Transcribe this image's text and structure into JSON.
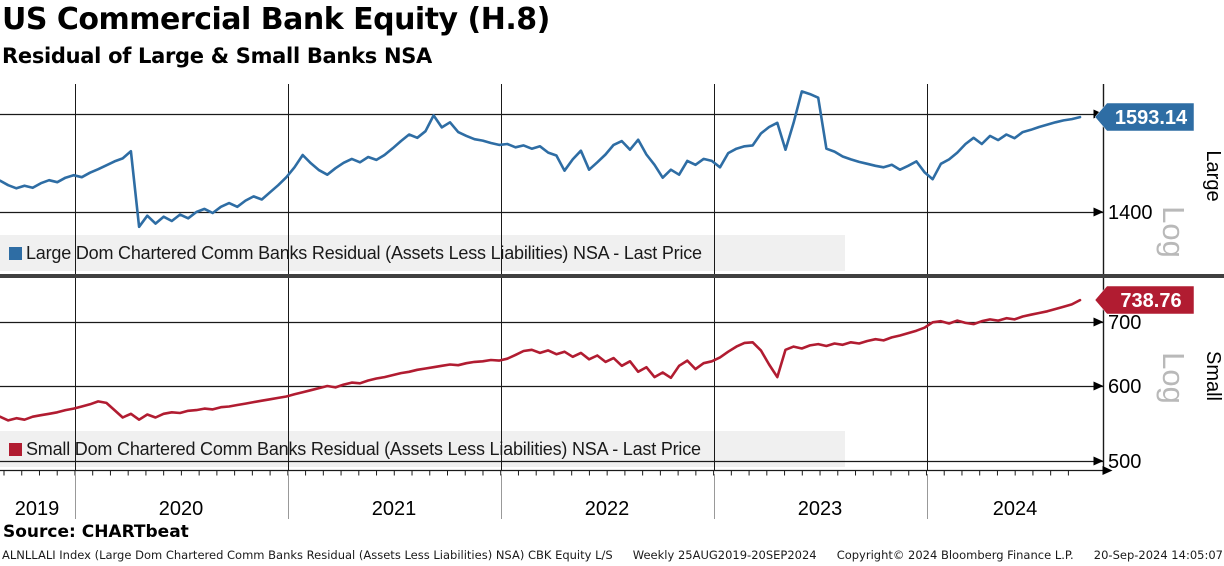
{
  "header": {
    "title": "US Commercial Bank Equity (H.8)",
    "subtitle": "Residual of Large & Small Banks NSA"
  },
  "footer": {
    "source": "Source: CHARTbeat",
    "disclaimer_left": "ALNLLALI Index (Large Dom Chartered Comm Banks Residual (Assets Less Liabilities) NSA) CBK Equity L/S",
    "disclaimer_period": "Weekly 25AUG2019-20SEP2024",
    "disclaimer_copyright": "Copyright© 2024 Bloomberg Finance L.P.",
    "disclaimer_datetime": "20-Sep-2024 14:05:07"
  },
  "colors": {
    "large_line": "#2e6da4",
    "small_line": "#b11c31",
    "gridline": "#1a1a1a",
    "legend_band": "#f0f0f0",
    "panel_divider": "#404040",
    "log_label": "#b9b9b9",
    "year_separator": "#999999"
  },
  "chart_data": {
    "type": "line",
    "title": "US Commercial Bank Equity (H.8)",
    "subtitle": "Residual of Large & Small Banks NSA",
    "frequency": "Weekly",
    "x_range": [
      "25AUG2019",
      "20SEP2024"
    ],
    "x_tick_labels": [
      "2019",
      "2020",
      "2021",
      "2022",
      "2023",
      "2024"
    ],
    "legend_position": "inside-band-left",
    "grid": true,
    "panels": [
      {
        "name": "Large Dom Chartered Comm Banks Residual (Assets Less Liabilities) NSA - Last Price",
        "side_label": "Large",
        "scale_label": "Log",
        "color": "#2e6da4",
        "last_price": 1593.14,
        "y_axis_ticks": [
          1400
        ],
        "y_gridline_values": [
          1400,
          1600
        ],
        "values": [
          1461,
          1452,
          1446,
          1451,
          1447,
          1456,
          1462,
          1458,
          1467,
          1472,
          1468,
          1477,
          1484,
          1492,
          1500,
          1506,
          1521,
          1372,
          1393,
          1378,
          1391,
          1383,
          1395,
          1388,
          1400,
          1406,
          1398,
          1410,
          1417,
          1410,
          1422,
          1430,
          1424,
          1438,
          1452,
          1468,
          1488,
          1513,
          1496,
          1482,
          1473,
          1486,
          1497,
          1505,
          1498,
          1509,
          1503,
          1513,
          1527,
          1542,
          1556,
          1549,
          1563,
          1597,
          1571,
          1582,
          1561,
          1553,
          1546,
          1543,
          1538,
          1534,
          1536,
          1529,
          1533,
          1526,
          1531,
          1518,
          1512,
          1481,
          1504,
          1522,
          1483,
          1498,
          1514,
          1534,
          1542,
          1524,
          1545,
          1514,
          1493,
          1467,
          1483,
          1473,
          1501,
          1493,
          1505,
          1501,
          1488,
          1517,
          1526,
          1531,
          1533,
          1558,
          1572,
          1581,
          1524,
          1581,
          1650,
          1644,
          1636,
          1526,
          1520,
          1510,
          1504,
          1499,
          1495,
          1491,
          1488,
          1493,
          1483,
          1491,
          1500,
          1478,
          1464,
          1495,
          1504,
          1518,
          1536,
          1549,
          1536,
          1553,
          1544,
          1556,
          1548,
          1561,
          1566,
          1572,
          1577,
          1582,
          1586,
          1589,
          1593.14
        ]
      },
      {
        "name": "Small Dom Chartered Comm Banks Residual (Assets Less Liabilities) NSA - Last Price",
        "side_label": "Small",
        "scale_label": "Log",
        "color": "#b11c31",
        "last_price": 738.76,
        "y_axis_ticks": [
          700,
          600,
          500
        ],
        "y_gridline_values": [
          500,
          600,
          700
        ],
        "values": [
          557,
          552,
          555,
          553,
          557,
          559,
          561,
          563,
          566,
          568,
          571,
          574,
          578,
          576,
          566,
          556,
          561,
          553,
          560,
          556,
          561,
          563,
          562,
          565,
          566,
          568,
          567,
          570,
          571,
          573,
          575,
          577,
          579,
          581,
          583,
          585,
          588,
          591,
          594,
          597,
          600,
          598,
          602,
          605,
          604,
          608,
          611,
          613,
          616,
          619,
          621,
          624,
          626,
          628,
          630,
          632,
          631,
          634,
          636,
          637,
          639,
          638,
          641,
          647,
          653,
          655,
          650,
          654,
          648,
          652,
          644,
          650,
          640,
          646,
          636,
          642,
          630,
          637,
          621,
          628,
          613,
          620,
          612,
          630,
          638,
          625,
          634,
          637,
          643,
          652,
          660,
          666,
          667,
          654,
          632,
          613,
          655,
          660,
          657,
          662,
          664,
          661,
          665,
          663,
          667,
          665,
          669,
          672,
          670,
          675,
          678,
          682,
          686,
          691,
          700,
          702,
          698,
          703,
          699,
          697,
          702,
          705,
          703,
          707,
          705,
          710,
          713,
          716,
          719,
          723,
          727,
          731,
          738.76
        ]
      }
    ]
  }
}
